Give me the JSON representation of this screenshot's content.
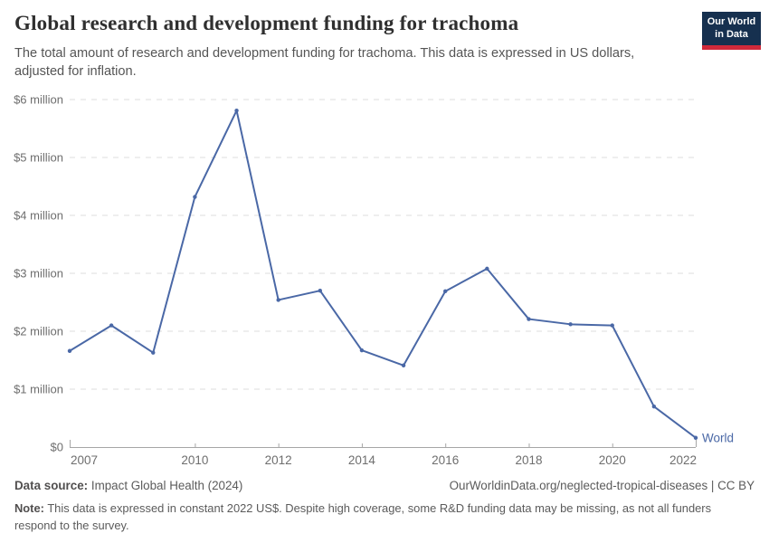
{
  "header": {
    "title": "Global research and development funding for trachoma",
    "subtitle_line1": "The total amount of research and development funding for trachoma. This data is expressed in US dollars,",
    "subtitle_line2": "adjusted for inflation."
  },
  "logo": {
    "line1": "Our World",
    "line2": "in Data",
    "bg_color": "#16304f",
    "accent_color": "#d0293b"
  },
  "chart_data": {
    "type": "line",
    "title": "Global research and development funding for trachoma",
    "xlabel": "",
    "ylabel": "",
    "values_unit": "million US$ (constant 2022)",
    "x": [
      2007,
      2008,
      2009,
      2010,
      2011,
      2012,
      2013,
      2014,
      2015,
      2016,
      2017,
      2018,
      2019,
      2020,
      2021,
      2022
    ],
    "series": [
      {
        "name": "World",
        "values": [
          1.66,
          2.1,
          1.63,
          4.32,
          5.81,
          2.54,
          2.7,
          1.67,
          1.41,
          2.69,
          3.08,
          2.21,
          2.12,
          2.1,
          0.7,
          0.16
        ]
      }
    ],
    "yticks": [
      {
        "label": "$0",
        "value": 0
      },
      {
        "label": "$1 million",
        "value": 1
      },
      {
        "label": "$2 million",
        "value": 2
      },
      {
        "label": "$3 million",
        "value": 3
      },
      {
        "label": "$4 million",
        "value": 4
      },
      {
        "label": "$5 million",
        "value": 5
      },
      {
        "label": "$6 million",
        "value": 6
      }
    ],
    "xticks": [
      2007,
      2010,
      2012,
      2014,
      2016,
      2018,
      2020,
      2022
    ],
    "ylim": [
      0,
      6
    ],
    "xlim": [
      2007,
      2022
    ],
    "grid": "dashed horizontal",
    "legend": "end-of-line entity label",
    "colors": {
      "line": "#4a68a6",
      "grid": "#dddddd",
      "axis": "#a6a6a6",
      "tick_label": "#6e6e6e"
    }
  },
  "footer": {
    "source_label": "Data source:",
    "source_value": "Impact Global Health (2024)",
    "attribution": "OurWorldinData.org/neglected-tropical-diseases | CC BY",
    "note_label": "Note:",
    "note_text": "This data is expressed in constant 2022 US$. Despite high coverage, some R&D funding data may be missing, as not all funders respond to the survey."
  }
}
